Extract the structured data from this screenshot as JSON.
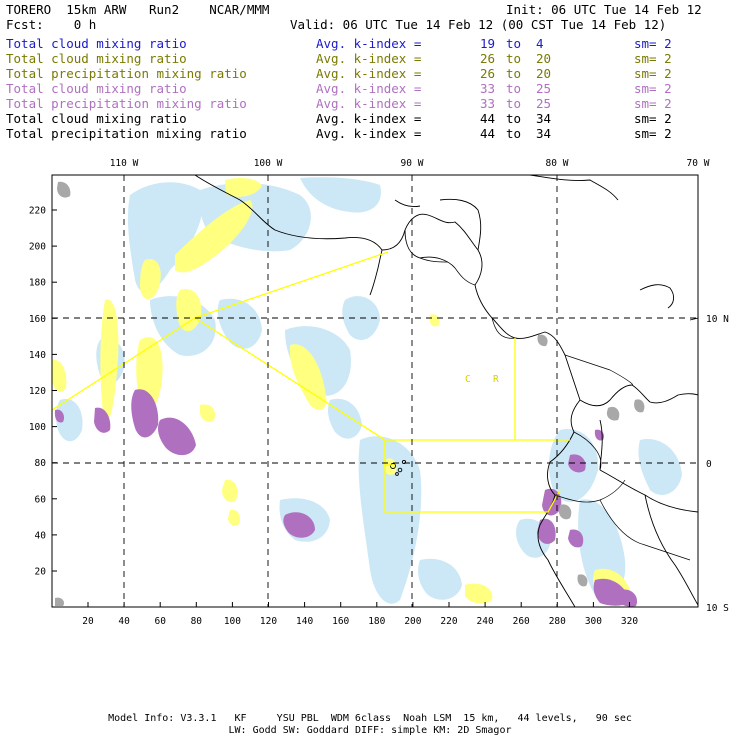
{
  "header": {
    "model_line": "TORERO  15km ARW   Run2    NCAR/MMM",
    "init": "Init: 06 UTC Tue 14 Feb 12",
    "fcst": "Fcst:    0 h",
    "valid": "Valid: 06 UTC Tue 14 Feb 12 (00 CST Tue 14 Feb 12)"
  },
  "fields": [
    {
      "name": "Total cloud mixing ratio",
      "avg": "Avg. k-index =",
      "from": "19",
      "to_word": "to",
      "to": "4",
      "sm": "sm= 2",
      "color": "#1a1acc"
    },
    {
      "name": "Total cloud mixing ratio",
      "avg": "Avg. k-index =",
      "from": "26",
      "to_word": "to",
      "to": "20",
      "sm": "sm= 2",
      "color": "#7a7a00"
    },
    {
      "name": "Total precipitation mixing ratio",
      "avg": "Avg. k-index =",
      "from": "26",
      "to_word": "to",
      "to": "20",
      "sm": "sm= 2",
      "color": "#7a7a00"
    },
    {
      "name": "Total cloud mixing ratio",
      "avg": "Avg. k-index =",
      "from": "33",
      "to_word": "to",
      "to": "25",
      "sm": "sm= 2",
      "color": "#b070c0"
    },
    {
      "name": "Total precipitation mixing ratio",
      "avg": "Avg. k-index =",
      "from": "33",
      "to_word": "to",
      "to": "25",
      "sm": "sm= 2",
      "color": "#b070c0"
    },
    {
      "name": "Total cloud mixing ratio",
      "avg": "Avg. k-index =",
      "from": "44",
      "to_word": "to",
      "to": "34",
      "sm": "sm= 2",
      "color": "#000000"
    },
    {
      "name": "Total precipitation mixing ratio",
      "avg": "Avg. k-index =",
      "from": "44",
      "to_word": "to",
      "to": "34",
      "sm": "sm= 2",
      "color": "#000000"
    }
  ],
  "map": {
    "longitude_labels": [
      "110 W",
      "100 W",
      "90 W",
      "80 W",
      "70 W"
    ],
    "latitude_labels": [
      "10 N",
      "0",
      "10 S"
    ],
    "x_ticks": [
      "20",
      "40",
      "60",
      "80",
      "100",
      "120",
      "140",
      "160",
      "180",
      "200",
      "220",
      "240",
      "260",
      "280",
      "300",
      "320"
    ],
    "y_ticks": [
      "20",
      "40",
      "60",
      "80",
      "100",
      "120",
      "140",
      "160",
      "180",
      "200",
      "220"
    ],
    "region_labels": [
      "C",
      "R"
    ],
    "colors": {
      "light_blue": "#cce8f6",
      "yellow": "#ffff80",
      "purple": "#b070c0",
      "gray": "#a8a8a8",
      "box_line": "#ffff00"
    }
  },
  "footer": {
    "line1": "Model Info: V3.3.1   KF     YSU PBL  WDM 6class  Noah LSM  15 km,   44 levels,   90 sec",
    "line2": "LW: Godd SW: Goddard DIFF: simple KM: 2D Smagor"
  }
}
